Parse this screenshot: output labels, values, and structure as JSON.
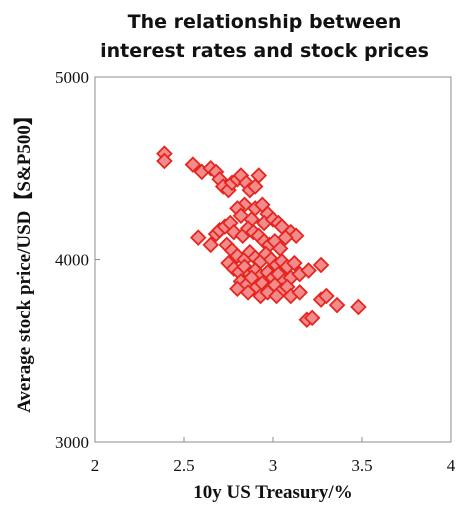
{
  "chart_data": {
    "type": "scatter",
    "title_lines": [
      "The relationship between",
      "interest rates and stock prices"
    ],
    "xlabel": "10y US Treasury/%",
    "ylabel": "Average stock price/USD【S&P500】",
    "xlim": [
      2,
      4
    ],
    "ylim": [
      3000,
      5000
    ],
    "xticks": [
      "2",
      "2.5",
      "3",
      "3.5",
      "4"
    ],
    "yticks": [
      "3000",
      "4000",
      "5000"
    ],
    "grid": false,
    "marker": "diamond",
    "marker_fill": "#f28c8c",
    "marker_stroke": "#e8241e",
    "points": [
      [
        2.39,
        4580
      ],
      [
        2.39,
        4540
      ],
      [
        2.55,
        4520
      ],
      [
        2.6,
        4480
      ],
      [
        2.65,
        4500
      ],
      [
        2.68,
        4480
      ],
      [
        2.7,
        4440
      ],
      [
        2.72,
        4400
      ],
      [
        2.75,
        4380
      ],
      [
        2.77,
        4420
      ],
      [
        2.8,
        4440
      ],
      [
        2.82,
        4460
      ],
      [
        2.85,
        4420
      ],
      [
        2.87,
        4380
      ],
      [
        2.9,
        4400
      ],
      [
        2.92,
        4460
      ],
      [
        2.84,
        4300
      ],
      [
        2.9,
        4280
      ],
      [
        2.94,
        4300
      ],
      [
        2.97,
        4250
      ],
      [
        2.8,
        4280
      ],
      [
        2.82,
        4240
      ],
      [
        2.88,
        4220
      ],
      [
        2.95,
        4200
      ],
      [
        3.0,
        4220
      ],
      [
        3.03,
        4200
      ],
      [
        3.05,
        4180
      ],
      [
        3.1,
        4150
      ],
      [
        3.13,
        4130
      ],
      [
        3.07,
        4120
      ],
      [
        2.58,
        4120
      ],
      [
        2.65,
        4080
      ],
      [
        2.68,
        4140
      ],
      [
        2.7,
        4160
      ],
      [
        2.73,
        4180
      ],
      [
        2.76,
        4200
      ],
      [
        2.78,
        4150
      ],
      [
        2.83,
        4130
      ],
      [
        2.86,
        4170
      ],
      [
        2.89,
        4150
      ],
      [
        2.92,
        4130
      ],
      [
        2.95,
        4100
      ],
      [
        2.98,
        4080
      ],
      [
        3.01,
        4100
      ],
      [
        3.04,
        4060
      ],
      [
        2.74,
        4080
      ],
      [
        2.77,
        4050
      ],
      [
        2.8,
        4020
      ],
      [
        2.84,
        4000
      ],
      [
        2.87,
        4040
      ],
      [
        2.9,
        4010
      ],
      [
        2.93,
        3990
      ],
      [
        2.96,
        4030
      ],
      [
        2.99,
        4000
      ],
      [
        3.02,
        3970
      ],
      [
        3.05,
        3990
      ],
      [
        3.08,
        3960
      ],
      [
        3.12,
        3980
      ],
      [
        2.75,
        3980
      ],
      [
        2.78,
        3950
      ],
      [
        2.81,
        3930
      ],
      [
        2.84,
        3960
      ],
      [
        2.87,
        3920
      ],
      [
        2.9,
        3940
      ],
      [
        2.93,
        3910
      ],
      [
        2.97,
        3930
      ],
      [
        3.0,
        3900
      ],
      [
        3.03,
        3920
      ],
      [
        3.06,
        3880
      ],
      [
        3.1,
        3900
      ],
      [
        3.15,
        3920
      ],
      [
        3.2,
        3940
      ],
      [
        3.27,
        3970
      ],
      [
        2.82,
        3880
      ],
      [
        2.85,
        3860
      ],
      [
        2.88,
        3900
      ],
      [
        2.91,
        3850
      ],
      [
        2.94,
        3870
      ],
      [
        2.98,
        3840
      ],
      [
        3.01,
        3860
      ],
      [
        3.05,
        3830
      ],
      [
        3.08,
        3850
      ],
      [
        2.8,
        3840
      ],
      [
        2.86,
        3820
      ],
      [
        2.93,
        3800
      ],
      [
        2.97,
        3820
      ],
      [
        3.02,
        3800
      ],
      [
        3.1,
        3800
      ],
      [
        3.15,
        3820
      ],
      [
        3.27,
        3780
      ],
      [
        3.3,
        3800
      ],
      [
        3.36,
        3750
      ],
      [
        3.48,
        3740
      ],
      [
        3.19,
        3670
      ],
      [
        3.22,
        3680
      ]
    ]
  }
}
